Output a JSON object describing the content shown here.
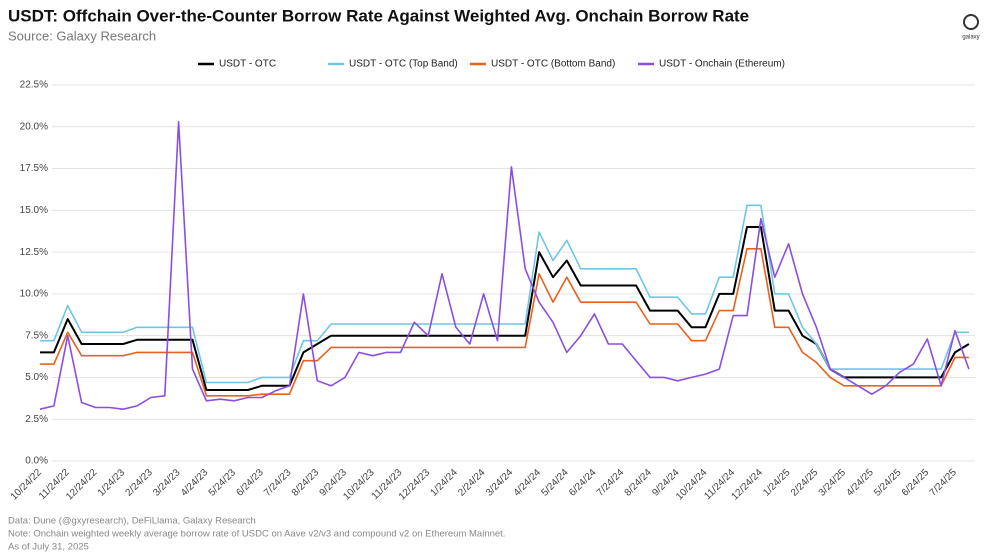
{
  "chart_data": {
    "type": "line",
    "title": "USDT: Offchain Over-the-Counter Borrow Rate Against Weighted Avg. Onchain Borrow Rate",
    "subtitle": "Source: Galaxy Research",
    "logo": "galaxy",
    "notes": [
      "Data: Dune (@gxyresearch), DeFiLlama, Galaxy Research",
      "Note: Onchain weighted weekly average borrow rate of USDC on Aave v2/v3 and compound v2 on Ethereum Mainnet.",
      "As of July 31, 2025"
    ],
    "categories": [
      "10/24/22",
      null,
      "11/24/22",
      null,
      "12/24/22",
      null,
      "1/24/23",
      null,
      "2/24/23",
      null,
      "3/24/23",
      null,
      "4/24/23",
      null,
      "5/24/23",
      null,
      "6/24/23",
      null,
      "7/24/23",
      null,
      "8/24/23",
      null,
      "9/24/23",
      null,
      "10/24/23",
      null,
      "11/24/23",
      null,
      "12/24/23",
      null,
      "1/24/24",
      null,
      "2/24/24",
      null,
      "3/24/24",
      null,
      "4/24/24",
      null,
      "5/24/24",
      null,
      "6/24/24",
      null,
      "7/24/24",
      null,
      "8/24/24",
      null,
      "9/24/24",
      null,
      "10/24/24",
      null,
      "11/24/24",
      null,
      "12/24/24",
      null,
      "1/24/25",
      null,
      "2/24/25",
      null,
      "3/24/25",
      null,
      "4/24/25",
      null,
      "5/24/25",
      null,
      "6/24/25",
      null,
      "7/24/25",
      null
    ],
    "series": [
      {
        "name": "USDT - OTC",
        "color": "#000000",
        "values": [
          6.5,
          6.5,
          8.5,
          7.0,
          7.0,
          7.0,
          7.0,
          7.25,
          7.25,
          7.25,
          7.25,
          7.25,
          4.25,
          4.25,
          4.25,
          4.25,
          4.5,
          4.5,
          4.5,
          6.5,
          7.0,
          7.5,
          7.5,
          7.5,
          7.5,
          7.5,
          7.5,
          7.5,
          7.5,
          7.5,
          7.5,
          7.5,
          7.5,
          7.5,
          7.5,
          7.5,
          12.5,
          11.0,
          12.0,
          10.5,
          10.5,
          10.5,
          10.5,
          10.5,
          9.0,
          9.0,
          9.0,
          8.0,
          8.0,
          10.0,
          10.0,
          14.0,
          14.0,
          9.0,
          9.0,
          7.5,
          7.0,
          5.5,
          5.0,
          5.0,
          5.0,
          5.0,
          5.0,
          5.0,
          5.0,
          5.0,
          6.5,
          7.0
        ]
      },
      {
        "name": "USDT - OTC (Top Band)",
        "color": "#6ec6e6",
        "values": [
          7.2,
          7.2,
          9.3,
          7.7,
          7.7,
          7.7,
          7.7,
          8.0,
          8.0,
          8.0,
          8.0,
          8.0,
          4.7,
          4.7,
          4.7,
          4.7,
          5.0,
          5.0,
          5.0,
          7.2,
          7.2,
          8.2,
          8.2,
          8.2,
          8.2,
          8.2,
          8.2,
          8.2,
          8.2,
          8.2,
          8.2,
          8.2,
          8.2,
          8.2,
          8.2,
          8.2,
          13.7,
          12.0,
          13.2,
          11.5,
          11.5,
          11.5,
          11.5,
          11.5,
          9.8,
          9.8,
          9.8,
          8.8,
          8.8,
          11.0,
          11.0,
          15.3,
          15.3,
          10.0,
          10.0,
          8.0,
          7.0,
          5.5,
          5.5,
          5.5,
          5.5,
          5.5,
          5.5,
          5.5,
          5.5,
          5.5,
          7.7,
          7.7
        ]
      },
      {
        "name": "USDT - OTC (Bottom Band)",
        "color": "#e8621c",
        "values": [
          5.8,
          5.8,
          7.7,
          6.3,
          6.3,
          6.3,
          6.3,
          6.5,
          6.5,
          6.5,
          6.5,
          6.5,
          3.9,
          3.9,
          3.9,
          3.9,
          4.0,
          4.0,
          4.0,
          6.0,
          6.0,
          6.8,
          6.8,
          6.8,
          6.8,
          6.8,
          6.8,
          6.8,
          6.8,
          6.8,
          6.8,
          6.8,
          6.8,
          6.8,
          6.8,
          6.8,
          11.2,
          9.5,
          11.0,
          9.5,
          9.5,
          9.5,
          9.5,
          9.5,
          8.2,
          8.2,
          8.2,
          7.2,
          7.2,
          9.0,
          9.0,
          12.7,
          12.7,
          8.0,
          8.0,
          6.5,
          5.9,
          5.0,
          4.5,
          4.5,
          4.5,
          4.5,
          4.5,
          4.5,
          4.5,
          4.5,
          6.2,
          6.2
        ]
      },
      {
        "name": "USDT - Onchain (Ethereum)",
        "color": "#8a4fe0",
        "values": [
          3.1,
          3.3,
          7.5,
          3.5,
          3.2,
          3.2,
          3.1,
          3.3,
          3.8,
          3.9,
          20.3,
          5.5,
          3.6,
          3.7,
          3.6,
          3.8,
          3.8,
          4.2,
          4.5,
          10.0,
          4.8,
          4.5,
          5.0,
          6.5,
          6.3,
          6.5,
          6.5,
          8.3,
          7.5,
          11.2,
          8.0,
          7.0,
          10.0,
          7.2,
          17.6,
          11.5,
          9.5,
          8.3,
          6.5,
          7.5,
          8.8,
          7.0,
          7.0,
          6.0,
          5.0,
          5.0,
          4.8,
          5.0,
          5.2,
          5.5,
          8.7,
          8.7,
          14.5,
          11.0,
          13.0,
          10.0,
          8.0,
          5.5,
          5.0,
          4.5,
          4.0,
          4.5,
          5.3,
          5.8,
          7.3,
          4.5,
          7.8,
          5.5
        ]
      }
    ],
    "ylim": [
      0,
      22.5
    ],
    "yticks": [
      {
        "value": 0,
        "label": "0.0%"
      },
      {
        "value": 2.5,
        "label": "2.5%"
      },
      {
        "value": 5,
        "label": "5.0%"
      },
      {
        "value": 7.5,
        "label": "7.5%"
      },
      {
        "value": 10,
        "label": "10.0%"
      },
      {
        "value": 12.5,
        "label": "12.5%"
      },
      {
        "value": 15,
        "label": "15.0%"
      },
      {
        "value": 17.5,
        "label": "17.5%"
      },
      {
        "value": 20,
        "label": "20.0%"
      },
      {
        "value": 22.5,
        "label": "22.5%"
      }
    ],
    "grid": true,
    "legend": "top"
  }
}
